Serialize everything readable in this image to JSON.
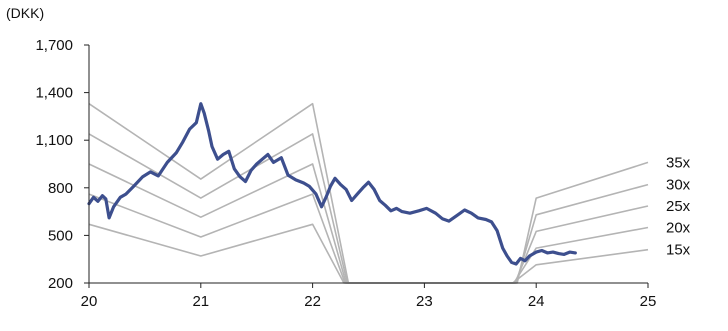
{
  "chart_data": {
    "type": "line",
    "unit_label": "(DKK)",
    "ylim": [
      200,
      1700
    ],
    "yticks": [
      200,
      500,
      800,
      1100,
      1400,
      1700
    ],
    "ytick_labels": [
      "200",
      "500",
      "800",
      "1,100",
      "1,400",
      "1,700"
    ],
    "xlim": [
      20,
      25
    ],
    "xticks": [
      20,
      21,
      22,
      23,
      24,
      25
    ],
    "xtick_labels": [
      "20",
      "21",
      "22",
      "23",
      "24",
      "25"
    ],
    "grid": false,
    "colors": {
      "price": "#3d4f8e",
      "band": "#b4b4b4",
      "axis": "#222222"
    },
    "series": [
      {
        "role": "price",
        "points": [
          [
            20.0,
            700
          ],
          [
            20.04,
            740
          ],
          [
            20.08,
            715
          ],
          [
            20.12,
            750
          ],
          [
            20.15,
            730
          ],
          [
            20.18,
            610
          ],
          [
            20.22,
            680
          ],
          [
            20.28,
            740
          ],
          [
            20.33,
            760
          ],
          [
            20.4,
            810
          ],
          [
            20.48,
            870
          ],
          [
            20.55,
            900
          ],
          [
            20.62,
            875
          ],
          [
            20.7,
            960
          ],
          [
            20.78,
            1020
          ],
          [
            20.84,
            1090
          ],
          [
            20.9,
            1170
          ],
          [
            20.96,
            1210
          ],
          [
            21.0,
            1330
          ],
          [
            21.03,
            1270
          ],
          [
            21.07,
            1160
          ],
          [
            21.1,
            1060
          ],
          [
            21.15,
            980
          ],
          [
            21.2,
            1010
          ],
          [
            21.25,
            1030
          ],
          [
            21.3,
            920
          ],
          [
            21.35,
            870
          ],
          [
            21.4,
            840
          ],
          [
            21.45,
            910
          ],
          [
            21.5,
            950
          ],
          [
            21.55,
            980
          ],
          [
            21.6,
            1010
          ],
          [
            21.65,
            960
          ],
          [
            21.72,
            990
          ],
          [
            21.78,
            880
          ],
          [
            21.85,
            850
          ],
          [
            21.92,
            830
          ],
          [
            21.97,
            810
          ],
          [
            22.03,
            760
          ],
          [
            22.08,
            680
          ],
          [
            22.12,
            740
          ],
          [
            22.16,
            810
          ],
          [
            22.2,
            860
          ],
          [
            22.25,
            820
          ],
          [
            22.3,
            790
          ],
          [
            22.35,
            720
          ],
          [
            22.4,
            760
          ],
          [
            22.45,
            800
          ],
          [
            22.5,
            835
          ],
          [
            22.55,
            790
          ],
          [
            22.6,
            720
          ],
          [
            22.65,
            690
          ],
          [
            22.7,
            655
          ],
          [
            22.75,
            670
          ],
          [
            22.8,
            650
          ],
          [
            22.87,
            640
          ],
          [
            22.95,
            655
          ],
          [
            23.02,
            670
          ],
          [
            23.1,
            640
          ],
          [
            23.16,
            605
          ],
          [
            23.22,
            590
          ],
          [
            23.3,
            630
          ],
          [
            23.36,
            660
          ],
          [
            23.42,
            640
          ],
          [
            23.48,
            610
          ],
          [
            23.55,
            600
          ],
          [
            23.6,
            585
          ],
          [
            23.65,
            530
          ],
          [
            23.7,
            420
          ],
          [
            23.74,
            370
          ],
          [
            23.78,
            330
          ],
          [
            23.82,
            320
          ],
          [
            23.86,
            355
          ],
          [
            23.9,
            340
          ],
          [
            23.94,
            370
          ],
          [
            24.0,
            395
          ],
          [
            24.05,
            405
          ],
          [
            24.1,
            390
          ],
          [
            24.15,
            395
          ],
          [
            24.2,
            385
          ],
          [
            24.25,
            380
          ],
          [
            24.3,
            395
          ],
          [
            24.35,
            390
          ]
        ]
      }
    ],
    "bands": [
      {
        "name": "35x",
        "points": [
          [
            20.0,
            1330
          ],
          [
            21.0,
            855
          ],
          [
            22.0,
            1330
          ],
          [
            22.32,
            200
          ],
          [
            23.83,
            200
          ],
          [
            24.0,
            735
          ],
          [
            25.0,
            960
          ]
        ]
      },
      {
        "name": "30x",
        "points": [
          [
            20.0,
            1140
          ],
          [
            21.0,
            735
          ],
          [
            22.0,
            1140
          ],
          [
            22.31,
            200
          ],
          [
            23.82,
            200
          ],
          [
            24.0,
            630
          ],
          [
            25.0,
            820
          ]
        ]
      },
      {
        "name": "25x",
        "points": [
          [
            20.0,
            950
          ],
          [
            21.0,
            615
          ],
          [
            22.0,
            950
          ],
          [
            22.3,
            200
          ],
          [
            23.81,
            200
          ],
          [
            24.0,
            525
          ],
          [
            25.0,
            685
          ]
        ]
      },
      {
        "name": "20x",
        "points": [
          [
            20.0,
            760
          ],
          [
            21.0,
            490
          ],
          [
            22.0,
            760
          ],
          [
            22.29,
            200
          ],
          [
            23.8,
            200
          ],
          [
            24.0,
            420
          ],
          [
            25.0,
            550
          ]
        ]
      },
      {
        "name": "15x",
        "points": [
          [
            20.0,
            570
          ],
          [
            21.0,
            370
          ],
          [
            22.0,
            570
          ],
          [
            22.28,
            200
          ],
          [
            23.79,
            200
          ],
          [
            24.0,
            315
          ],
          [
            25.0,
            410
          ]
        ]
      }
    ]
  }
}
